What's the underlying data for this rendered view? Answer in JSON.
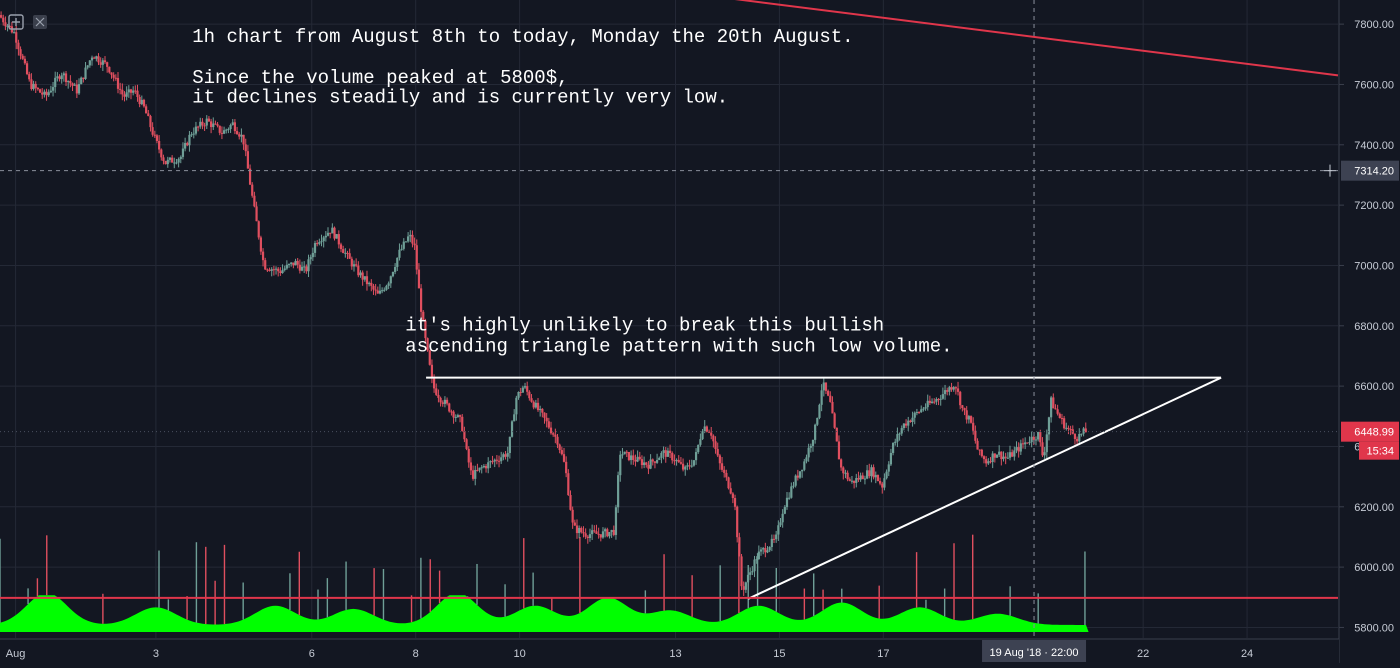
{
  "chart_data": {
    "type": "candlestick",
    "timeframe": "1h",
    "yticks": [
      5800,
      6000,
      6200,
      6400,
      6600,
      6800,
      7000,
      7200,
      7400,
      7600,
      7800
    ],
    "ylim": [
      5765,
      7880
    ],
    "xticks": [
      {
        "label": "Aug",
        "day": 7.0
      },
      {
        "label": "3",
        "day": 3
      },
      {
        "label": "6",
        "day": 6
      },
      {
        "label": "8",
        "day": 8
      },
      {
        "label": "10",
        "day": 10
      },
      {
        "label": "13",
        "day": 13
      },
      {
        "label": "15",
        "day": 15
      },
      {
        "label": "17",
        "day": 17
      },
      {
        "label": "22",
        "day": 22
      },
      {
        "label": "24",
        "day": 24
      }
    ],
    "xlim_days": [
      0.0,
      25.75
    ],
    "grid": true,
    "price_path": [
      [
        0.0,
        7830
      ],
      [
        0.3,
        7770
      ],
      [
        0.6,
        7600
      ],
      [
        0.9,
        7560
      ],
      [
        1.2,
        7640
      ],
      [
        1.5,
        7580
      ],
      [
        1.8,
        7700
      ],
      [
        2.1,
        7660
      ],
      [
        2.4,
        7560
      ],
      [
        2.6,
        7580
      ],
      [
        2.8,
        7520
      ],
      [
        3.0,
        7420
      ],
      [
        3.2,
        7340
      ],
      [
        3.5,
        7360
      ],
      [
        3.7,
        7440
      ],
      [
        4.0,
        7480
      ],
      [
        4.3,
        7440
      ],
      [
        4.5,
        7470
      ],
      [
        4.7,
        7420
      ],
      [
        4.9,
        7200
      ],
      [
        5.1,
        7000
      ],
      [
        5.4,
        6980
      ],
      [
        5.7,
        7010
      ],
      [
        5.9,
        6980
      ],
      [
        6.1,
        7080
      ],
      [
        6.4,
        7120
      ],
      [
        6.7,
        7030
      ],
      [
        6.9,
        6980
      ],
      [
        7.1,
        6940
      ],
      [
        7.3,
        6900
      ],
      [
        7.5,
        6950
      ],
      [
        7.7,
        7040
      ],
      [
        7.9,
        7100
      ],
      [
        8.0,
        7060
      ],
      [
        8.1,
        6890
      ],
      [
        8.2,
        6760
      ],
      [
        8.35,
        6600
      ],
      [
        8.5,
        6560
      ],
      [
        8.7,
        6520
      ],
      [
        8.9,
        6480
      ],
      [
        9.0,
        6380
      ],
      [
        9.1,
        6300
      ],
      [
        9.3,
        6330
      ],
      [
        9.6,
        6360
      ],
      [
        9.8,
        6380
      ],
      [
        9.95,
        6560
      ],
      [
        10.1,
        6600
      ],
      [
        10.3,
        6540
      ],
      [
        10.5,
        6490
      ],
      [
        10.75,
        6420
      ],
      [
        10.9,
        6330
      ],
      [
        11.05,
        6130
      ],
      [
        11.3,
        6110
      ],
      [
        11.6,
        6110
      ],
      [
        11.85,
        6120
      ],
      [
        11.95,
        6380
      ],
      [
        12.2,
        6360
      ],
      [
        12.5,
        6340
      ],
      [
        12.8,
        6380
      ],
      [
        13.0,
        6360
      ],
      [
        13.2,
        6320
      ],
      [
        13.4,
        6360
      ],
      [
        13.55,
        6470
      ],
      [
        13.7,
        6450
      ],
      [
        13.85,
        6350
      ],
      [
        14.0,
        6290
      ],
      [
        14.15,
        6230
      ],
      [
        14.3,
        5920
      ],
      [
        14.45,
        5980
      ],
      [
        14.6,
        6040
      ],
      [
        14.8,
        6070
      ],
      [
        14.95,
        6090
      ],
      [
        15.1,
        6200
      ],
      [
        15.3,
        6280
      ],
      [
        15.5,
        6350
      ],
      [
        15.7,
        6450
      ],
      [
        15.85,
        6610
      ],
      [
        16.0,
        6540
      ],
      [
        16.2,
        6330
      ],
      [
        16.4,
        6280
      ],
      [
        16.6,
        6300
      ],
      [
        16.8,
        6320
      ],
      [
        17.0,
        6270
      ],
      [
        17.2,
        6400
      ],
      [
        17.4,
        6470
      ],
      [
        17.6,
        6500
      ],
      [
        17.8,
        6530
      ],
      [
        18.0,
        6550
      ],
      [
        18.2,
        6580
      ],
      [
        18.4,
        6610
      ],
      [
        18.55,
        6520
      ],
      [
        18.7,
        6480
      ],
      [
        18.85,
        6380
      ],
      [
        19.0,
        6350
      ],
      [
        19.2,
        6380
      ],
      [
        19.4,
        6360
      ],
      [
        19.6,
        6390
      ],
      [
        19.8,
        6420
      ],
      [
        20.0,
        6440
      ],
      [
        20.1,
        6360
      ],
      [
        20.25,
        6550
      ],
      [
        20.4,
        6500
      ],
      [
        20.55,
        6460
      ],
      [
        20.75,
        6430
      ],
      [
        20.9,
        6449
      ]
    ],
    "current_price": "6448.99",
    "countdown": "15:34",
    "crosshair_price": "7314.20",
    "crosshair_time": "19 Aug '18 · 22:00",
    "crosshair_day": 19.9,
    "trendlines": [
      {
        "name": "long-term-resistance",
        "color": "#e0364b",
        "from": [
          12.0,
          7930
        ],
        "to": [
          25.75,
          7630
        ]
      },
      {
        "name": "triangle-top",
        "color": "#ffffff",
        "from": [
          8.2,
          6628
        ],
        "to": [
          23.5,
          6628
        ]
      },
      {
        "name": "triangle-bottom",
        "color": "#ffffff",
        "from": [
          14.4,
          5895
        ],
        "to": [
          23.5,
          6628
        ]
      },
      {
        "name": "volume-level",
        "color": "#e0364b",
        "from": [
          0.0,
          5898
        ],
        "to": [
          25.75,
          5898
        ]
      }
    ],
    "annotations": [
      {
        "text": "1h chart from August 8th to today, Monday the 20th August.",
        "day": 3.7,
        "price": 7740
      },
      {
        "text": "Since the volume peaked at 5800$,",
        "day": 3.7,
        "price": 7605
      },
      {
        "text": "it declines steadily and is currently very low.",
        "day": 3.7,
        "price": 7540
      },
      {
        "text": "it's highly unlikely to break this bullish",
        "day": 7.8,
        "price": 6785
      },
      {
        "text": "ascending triangle pattern with such low volume.",
        "day": 7.8,
        "price": 6715
      }
    ],
    "colors": {
      "up": "#6f9f97",
      "down": "#e04f5f",
      "volume_area": "#00ff00",
      "background": "#131722",
      "grid": "#242936",
      "axis_text": "#c7ccd6",
      "annotation": "#ffffff",
      "price_label": "#e0364b"
    }
  }
}
